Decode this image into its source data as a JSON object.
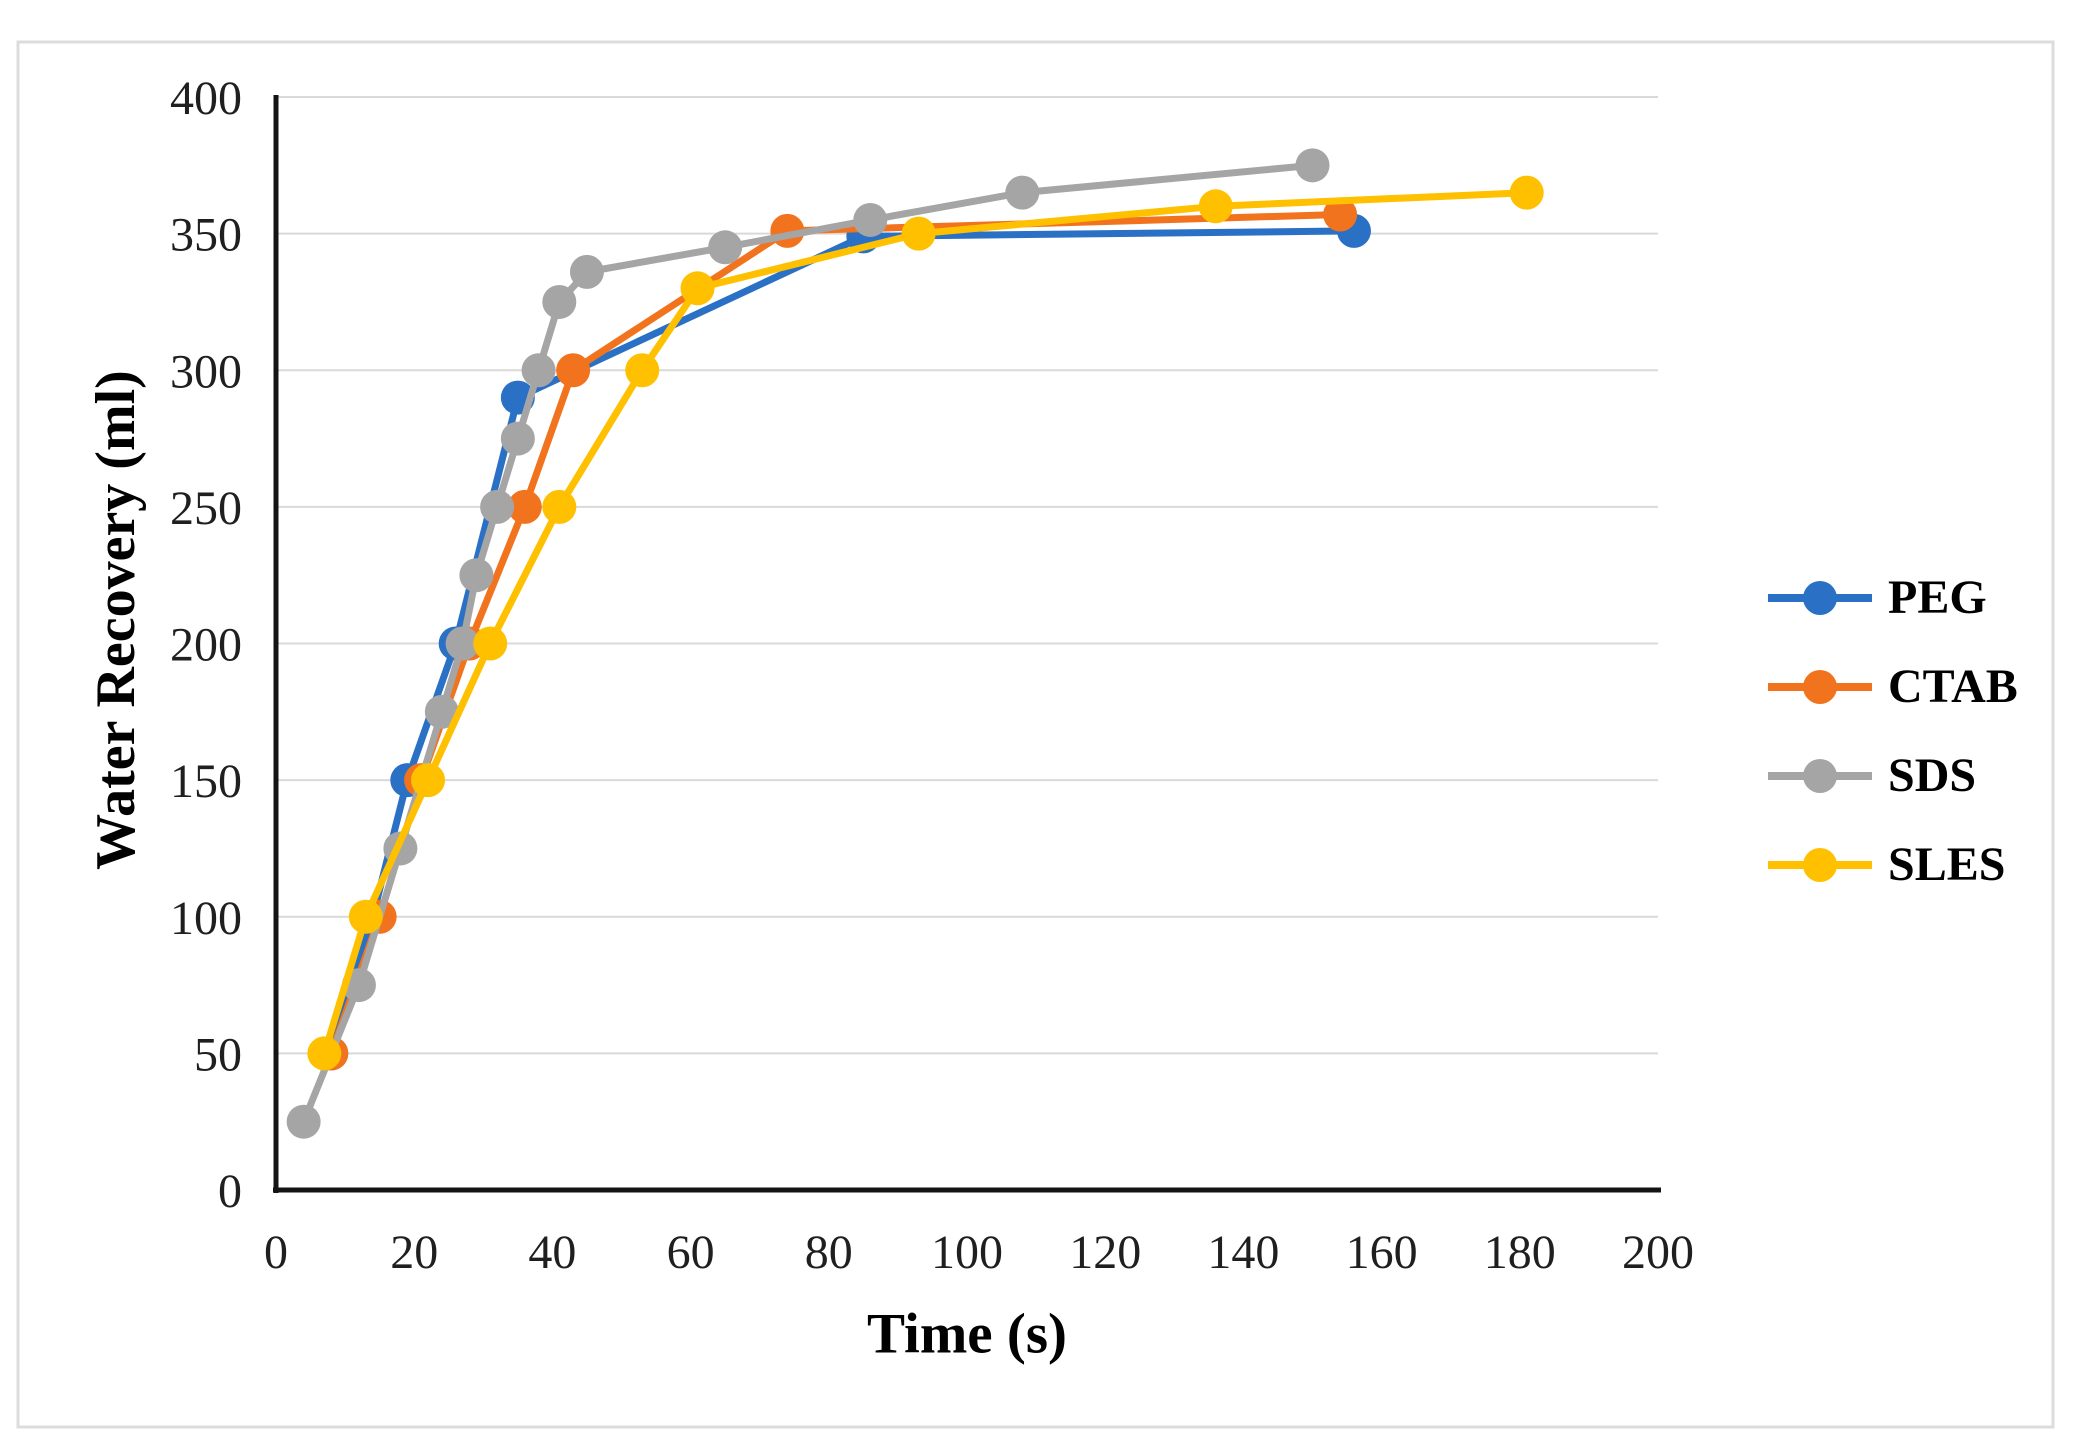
{
  "figure": {
    "background": "#FFFFFF",
    "frame_color": "#DCDCDC"
  },
  "chart_data": {
    "type": "line",
    "title": "",
    "xlabel": "Time (s)",
    "ylabel": "Water Recovery (ml)",
    "xlim": [
      0,
      200
    ],
    "ylim": [
      0,
      400
    ],
    "x_ticks": [
      0,
      20,
      40,
      60,
      80,
      100,
      120,
      140,
      160,
      180,
      200
    ],
    "y_ticks": [
      0,
      50,
      100,
      150,
      200,
      250,
      300,
      350,
      400
    ],
    "grid": "horizontal-only",
    "gridline_color": "#D9D9D9",
    "axis_color": "#141414",
    "tick_label_color": "#1F1F1F",
    "legend_position": "right-middle",
    "series": [
      {
        "name": "PEG",
        "color": "#2A70C4",
        "marker": "circle",
        "points": [
          [
            8,
            50
          ],
          [
            14,
            100
          ],
          [
            19,
            150
          ],
          [
            26,
            200
          ],
          [
            35,
            290
          ],
          [
            85,
            349
          ],
          [
            156,
            351
          ]
        ]
      },
      {
        "name": "CTAB",
        "color": "#F2731E",
        "marker": "circle",
        "points": [
          [
            8,
            50
          ],
          [
            15,
            100
          ],
          [
            21,
            150
          ],
          [
            28,
            200
          ],
          [
            36,
            250
          ],
          [
            43,
            300
          ],
          [
            74,
            351
          ],
          [
            154,
            357
          ]
        ]
      },
      {
        "name": "SDS",
        "color": "#A5A5A5",
        "marker": "circle",
        "points": [
          [
            4,
            25
          ],
          [
            12,
            75
          ],
          [
            18,
            125
          ],
          [
            24,
            175
          ],
          [
            27,
            200
          ],
          [
            29,
            225
          ],
          [
            32,
            250
          ],
          [
            35,
            275
          ],
          [
            38,
            300
          ],
          [
            41,
            325
          ],
          [
            45,
            336
          ],
          [
            65,
            345
          ],
          [
            86,
            355
          ],
          [
            108,
            365
          ],
          [
            150,
            375
          ]
        ]
      },
      {
        "name": "SLES",
        "color": "#FFC000",
        "marker": "circle",
        "points": [
          [
            7,
            50
          ],
          [
            13,
            100
          ],
          [
            22,
            150
          ],
          [
            31,
            200
          ],
          [
            41,
            250
          ],
          [
            53,
            300
          ],
          [
            61,
            330
          ],
          [
            93,
            350
          ],
          [
            136,
            360
          ],
          [
            181,
            365
          ]
        ]
      }
    ]
  }
}
